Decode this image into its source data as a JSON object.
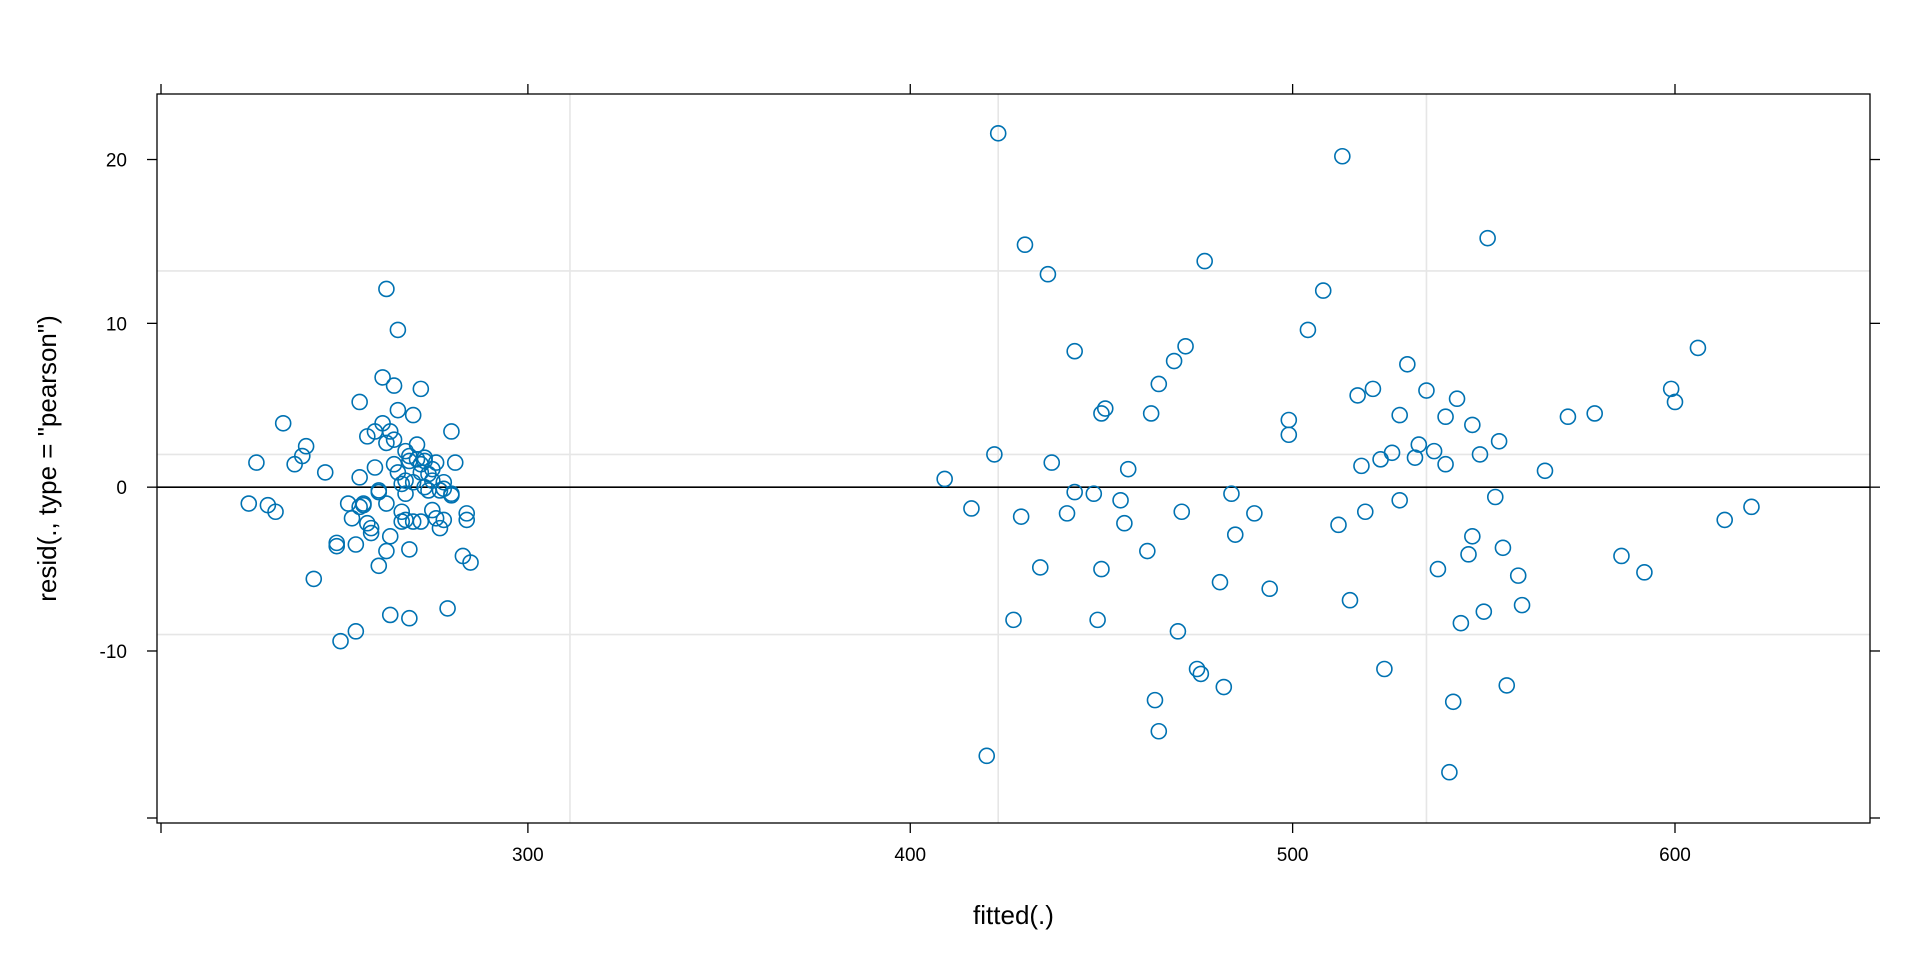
{
  "colors": {
    "points": "#0072b2",
    "ref_grid": "#e6e6e6",
    "zero_line": "#000000"
  },
  "chart_data": {
    "type": "scatter",
    "title": "",
    "xlabel": "fitted(.)",
    "ylabel": "resid(., type = \"pearson\")",
    "xlim": [
      203,
      651
    ],
    "ylim": [
      -20.5,
      24
    ],
    "x_ticks": [
      300,
      400,
      500,
      600
    ],
    "y_ticks": [
      -10,
      0,
      10,
      20
    ],
    "x_tick_labels": [
      "300",
      "400",
      "500",
      "600"
    ],
    "y_tick_labels": [
      "-10",
      "0",
      "10",
      "20"
    ],
    "reference_lines": {
      "x": [
        311,
        423,
        535
      ],
      "y": [
        -9.0,
        2.0,
        13.2
      ],
      "zero_y": 0
    },
    "grid": false,
    "series": [
      {
        "x": [
          227,
          229,
          232,
          234,
          236,
          239,
          241,
          242,
          244,
          247,
          250,
          250,
          251,
          253,
          254,
          255,
          256,
          256,
          257,
          258,
          259,
          259,
          260,
          260,
          261,
          261,
          262,
          262,
          263,
          263,
          263,
          264,
          264,
          264,
          265,
          265,
          265,
          266,
          266,
          266,
          267,
          267,
          267,
          268,
          268,
          268,
          269,
          269,
          269,
          270,
          270,
          270,
          271,
          271,
          272,
          272,
          272,
          273,
          273,
          273,
          274,
          274,
          275,
          275,
          276,
          276,
          277,
          277,
          278,
          278,
          279,
          280,
          280,
          281,
          283,
          284,
          284,
          285,
          255,
          256,
          257,
          258,
          261,
          263,
          268,
          278,
          269,
          272,
          275,
          280
        ],
        "y": [
          -1.0,
          1.5,
          -1.1,
          -1.5,
          3.9,
          1.4,
          1.9,
          2.5,
          -5.6,
          0.9,
          -3.4,
          -3.6,
          -9.4,
          -1.0,
          -1.9,
          -8.8,
          0.6,
          5.2,
          -1.1,
          3.1,
          -2.5,
          -2.8,
          1.2,
          3.4,
          -4.8,
          -0.2,
          3.9,
          6.7,
          -3.9,
          2.7,
          12.1,
          -3.0,
          -7.8,
          3.4,
          6.2,
          2.9,
          1.4,
          4.7,
          9.6,
          0.9,
          -2.1,
          -1.5,
          0.2,
          2.2,
          0.4,
          -2.0,
          -3.8,
          -8.0,
          1.9,
          -2.1,
          0.3,
          4.4,
          2.6,
          1.7,
          -2.1,
          1.4,
          6.0,
          1.8,
          1.6,
          0.0,
          -0.2,
          0.8,
          0.4,
          -1.4,
          -1.9,
          1.5,
          -0.2,
          -2.5,
          -2.0,
          0.3,
          -7.4,
          -0.4,
          3.4,
          1.5,
          -4.2,
          -2.0,
          -1.6,
          -4.6,
          -3.5,
          -1.2,
          -1.0,
          -2.2,
          -0.3,
          -1.0,
          -0.4,
          -0.1,
          1.6,
          0.9,
          1.1,
          -0.5
        ]
      },
      {
        "x": [
          409,
          416,
          420,
          422,
          423,
          427,
          429,
          430,
          434,
          436,
          437,
          441,
          443,
          443,
          448,
          449,
          450,
          450,
          451,
          455,
          456,
          457,
          462,
          463,
          464,
          465,
          465,
          469,
          470,
          471,
          472,
          475,
          476,
          477,
          481,
          482,
          484,
          485,
          490,
          494,
          499,
          499,
          504,
          508,
          512,
          513,
          515,
          517,
          518,
          519,
          521,
          523,
          524,
          526,
          528,
          528,
          530,
          532,
          533,
          535,
          537,
          538,
          540,
          540,
          541,
          542,
          543,
          544,
          546,
          547,
          547,
          549,
          550,
          551,
          553,
          554,
          555,
          556,
          559,
          560,
          566,
          572,
          579,
          586,
          592,
          599,
          600,
          606,
          613,
          620
        ],
        "y": [
          0.5,
          -1.3,
          -16.4,
          2.0,
          21.6,
          -8.1,
          -1.8,
          14.8,
          -4.9,
          13.0,
          1.5,
          -1.6,
          8.3,
          -0.3,
          -0.4,
          -8.1,
          4.5,
          -5.0,
          4.8,
          -0.8,
          -2.2,
          1.1,
          -3.9,
          4.5,
          -13.0,
          -14.9,
          6.3,
          7.7,
          -8.8,
          -1.5,
          8.6,
          -11.1,
          -11.4,
          13.8,
          -5.8,
          -12.2,
          -0.4,
          -2.9,
          -1.6,
          -6.2,
          4.1,
          3.2,
          9.6,
          12.0,
          -2.3,
          20.2,
          -6.9,
          5.6,
          1.3,
          -1.5,
          6.0,
          1.7,
          -11.1,
          2.1,
          4.4,
          -0.8,
          7.5,
          1.8,
          2.6,
          5.9,
          2.2,
          -5.0,
          4.3,
          1.4,
          -17.4,
          -13.1,
          5.4,
          -8.3,
          -4.1,
          -3.0,
          3.8,
          2.0,
          -7.6,
          15.2,
          -0.6,
          2.8,
          -3.7,
          -12.1,
          -5.4,
          -7.2,
          1.0,
          4.3,
          4.5,
          -4.2,
          -5.2,
          6.0,
          5.2,
          8.5,
          -2.0,
          -1.2
        ]
      }
    ]
  }
}
